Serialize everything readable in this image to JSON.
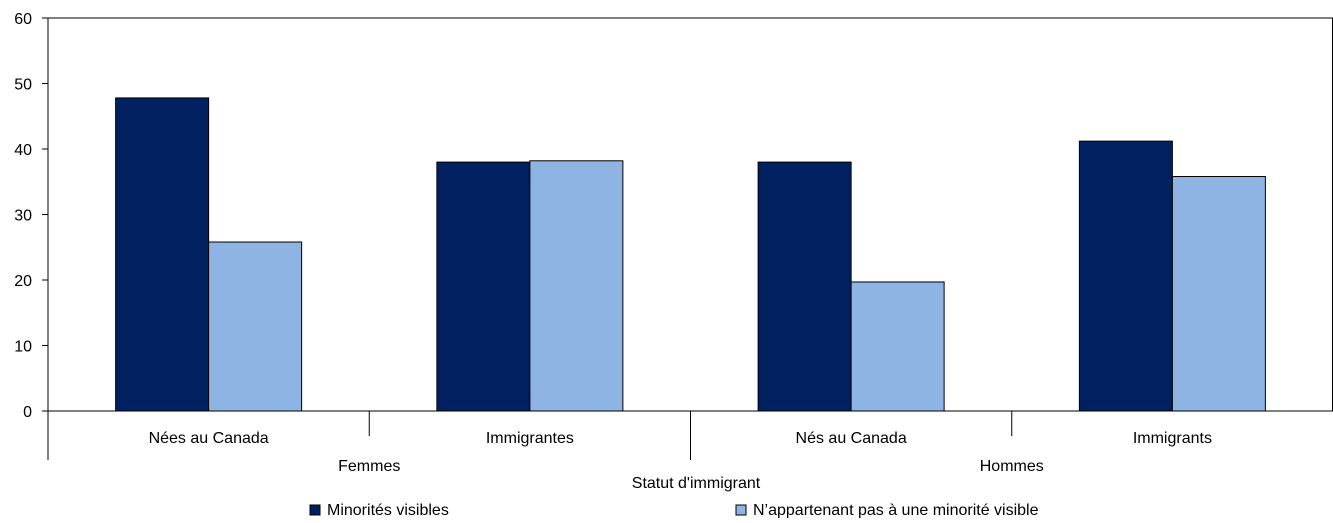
{
  "chart_data": {
    "type": "bar",
    "xlabel": "Statut d'immigrant",
    "ylabel": "",
    "ylim": [
      0,
      60
    ],
    "yticks": [
      0,
      10,
      20,
      30,
      40,
      50,
      60
    ],
    "grid": false,
    "legend_position": "bottom",
    "groups": [
      "Femmes",
      "Hommes"
    ],
    "categories": [
      "Nées au Canada",
      "Immigrantes",
      "Nés au Canada",
      "Immigrants"
    ],
    "category_groups": [
      0,
      0,
      1,
      1
    ],
    "series": [
      {
        "name": "Minorités visibles",
        "color": "#002060",
        "values": [
          47.8,
          38.0,
          38.0,
          41.2
        ]
      },
      {
        "name": "N’appartenant pas à une minorité visible",
        "color": "#8eb4e3",
        "values": [
          25.8,
          38.2,
          19.7,
          35.8
        ]
      }
    ]
  }
}
